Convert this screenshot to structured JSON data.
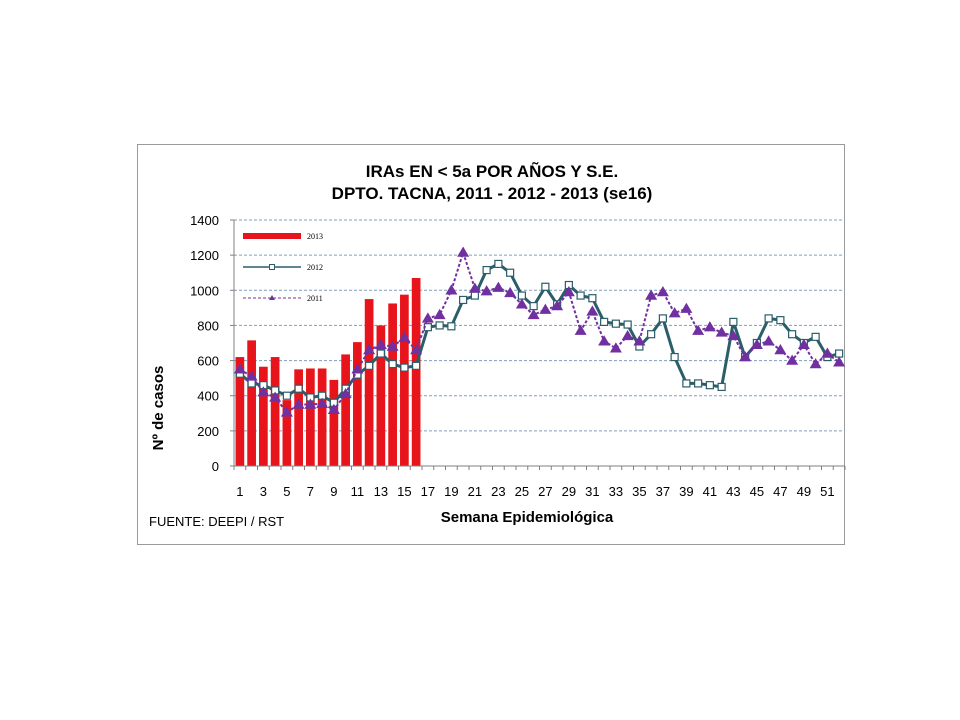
{
  "chart_data": {
    "type": "bar",
    "title_line1": "IRAs  EN < 5a POR AÑOS Y S.E.",
    "title_line2": "DPTO. TACNA, 2011 - 2012 -  2013  (se16)",
    "ylabel": "Nº de casos",
    "xlabel": "Semana Epidemiológica",
    "source": "FUENTE: DEEPI / RST",
    "ylim": [
      0,
      1400
    ],
    "yticks": [
      0,
      200,
      400,
      600,
      800,
      1000,
      1200,
      1400
    ],
    "grid": true,
    "legend_position": "top-left",
    "x_tick_labels": [
      "1",
      "3",
      "5",
      "7",
      "9",
      "11",
      "13",
      "15",
      "17",
      "19",
      "21",
      "23",
      "25",
      "27",
      "29",
      "31",
      "33",
      "35",
      "37",
      "39",
      "41",
      "43",
      "45",
      "47",
      "49",
      "51"
    ],
    "series": [
      {
        "name": "2013",
        "kind": "bar",
        "color": "#e8141b",
        "x": [
          1,
          2,
          3,
          4,
          5,
          6,
          7,
          8,
          9,
          10,
          11,
          12,
          13,
          14,
          15,
          16
        ],
        "values": [
          620,
          715,
          565,
          620,
          375,
          550,
          555,
          555,
          490,
          635,
          705,
          950,
          800,
          925,
          975,
          1070
        ]
      },
      {
        "name": "2012",
        "kind": "line",
        "color": "#2a5e68",
        "marker": "square",
        "x": [
          1,
          2,
          3,
          4,
          5,
          6,
          7,
          8,
          9,
          10,
          11,
          12,
          13,
          14,
          15,
          16,
          17,
          18,
          19,
          20,
          21,
          22,
          23,
          24,
          25,
          26,
          27,
          28,
          29,
          30,
          31,
          32,
          33,
          34,
          35,
          36,
          37,
          38,
          39,
          40,
          41,
          42,
          43,
          44,
          45,
          46,
          47,
          48,
          49,
          50,
          51,
          52
        ],
        "values": [
          525,
          470,
          460,
          430,
          400,
          440,
          390,
          400,
          360,
          440,
          520,
          570,
          640,
          580,
          560,
          570,
          790,
          800,
          795,
          945,
          970,
          1115,
          1150,
          1100,
          970,
          910,
          1020,
          920,
          1030,
          970,
          955,
          820,
          810,
          805,
          680,
          750,
          840,
          620,
          470,
          470,
          460,
          450,
          820,
          620,
          700,
          840,
          830,
          750,
          700,
          735,
          620,
          640
        ]
      },
      {
        "name": "2011",
        "kind": "line",
        "color": "#7030a0",
        "marker": "triangle",
        "x": [
          1,
          2,
          3,
          4,
          5,
          6,
          7,
          8,
          9,
          10,
          11,
          12,
          13,
          14,
          15,
          16,
          17,
          18,
          19,
          20,
          21,
          22,
          23,
          24,
          25,
          26,
          27,
          28,
          29,
          30,
          31,
          32,
          33,
          34,
          35,
          36,
          37,
          38,
          39,
          40,
          41,
          42,
          43,
          44,
          45,
          46,
          47,
          48,
          49,
          50,
          51,
          52
        ],
        "values": [
          550,
          510,
          420,
          390,
          305,
          350,
          350,
          355,
          320,
          410,
          550,
          660,
          690,
          680,
          730,
          660,
          840,
          860,
          1000,
          1215,
          1010,
          995,
          1015,
          985,
          920,
          860,
          890,
          910,
          990,
          770,
          880,
          710,
          670,
          740,
          710,
          970,
          990,
          870,
          895,
          770,
          790,
          760,
          740,
          620,
          690,
          710,
          660,
          600,
          690,
          580,
          640,
          590
        ]
      }
    ]
  }
}
